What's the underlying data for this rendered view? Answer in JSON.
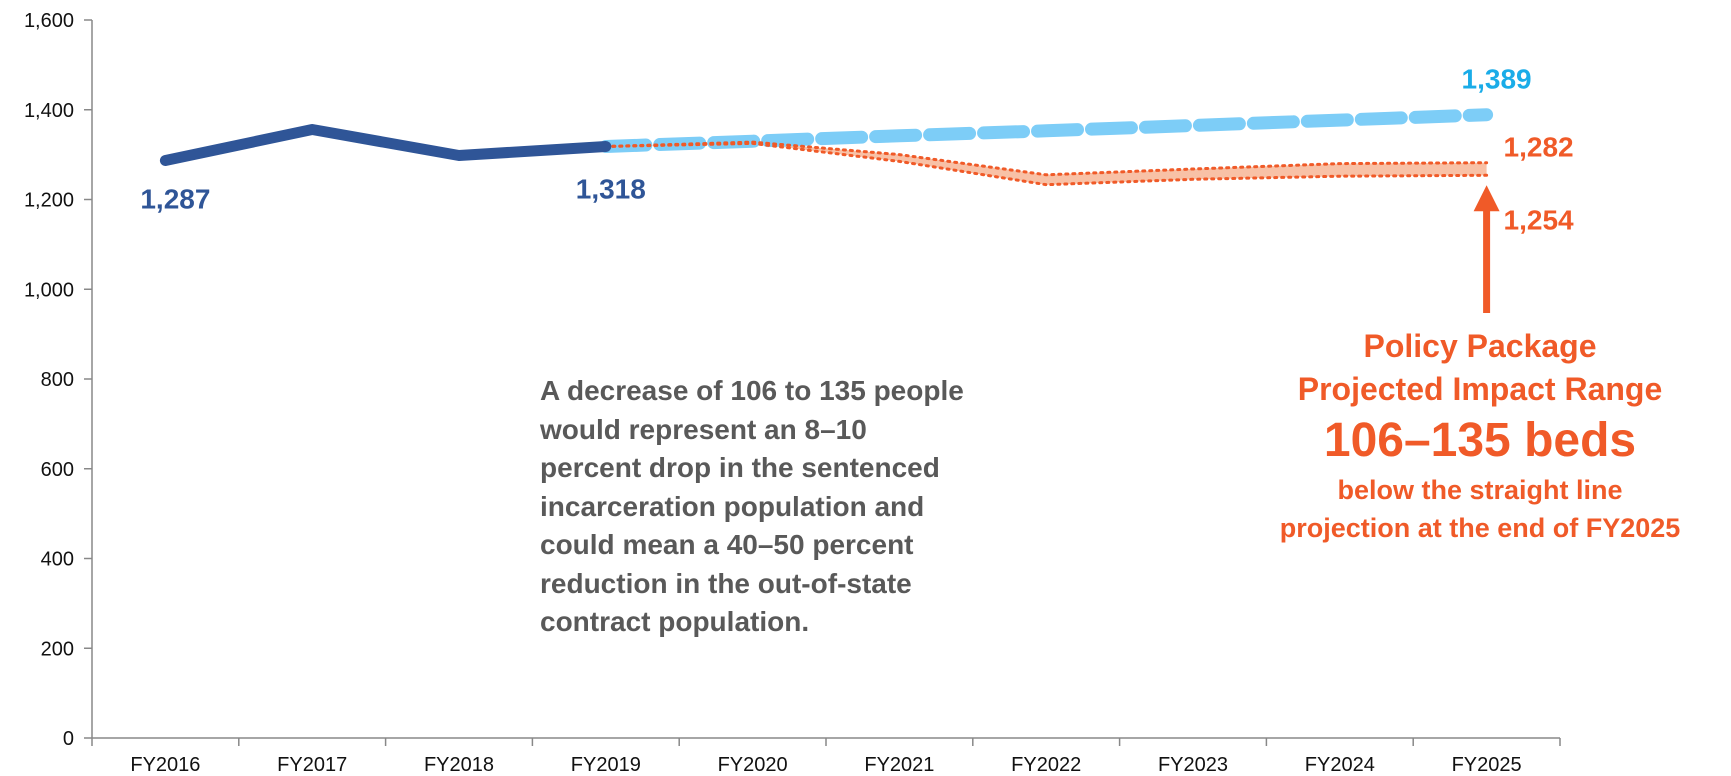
{
  "chart_data": {
    "type": "line",
    "categories": [
      "FY2016",
      "FY2017",
      "FY2018",
      "FY2019",
      "FY2020",
      "FY2021",
      "FY2022",
      "FY2023",
      "FY2024",
      "FY2025"
    ],
    "ylim": [
      0,
      1600
    ],
    "yticks": [
      0,
      200,
      400,
      600,
      800,
      1000,
      1200,
      1400,
      1600
    ],
    "ytick_labels": [
      "0",
      "200",
      "400",
      "600",
      "800",
      "1,000",
      "1,200",
      "1,400",
      "1,600"
    ],
    "grid": false,
    "colors": {
      "actual": "#2f5597",
      "straight_line": "#7dcdf7",
      "policy_range": "#f05a28",
      "policy_range_fill": "#f8c1a6",
      "straight_line_label": "#1aace8",
      "note_text": "#595959",
      "axis": "#888888"
    },
    "series": [
      {
        "key": "actual",
        "style": "solid",
        "x": [
          "FY2016",
          "FY2017",
          "FY2018",
          "FY2019"
        ],
        "values": [
          1287,
          1356,
          1298,
          1318
        ]
      },
      {
        "key": "straight_line",
        "style": "dashed",
        "x": [
          "FY2019",
          "FY2020",
          "FY2021",
          "FY2022",
          "FY2023",
          "FY2024",
          "FY2025"
        ],
        "values": [
          1318,
          1330,
          1342,
          1353,
          1365,
          1377,
          1389
        ]
      },
      {
        "key": "policy_high",
        "style": "dotted",
        "x": [
          "FY2019",
          "FY2020",
          "FY2021",
          "FY2022",
          "FY2023",
          "FY2024",
          "FY2025"
        ],
        "values": [
          1318,
          1328,
          1300,
          1255,
          1268,
          1280,
          1282
        ]
      },
      {
        "key": "policy_low",
        "style": "dotted",
        "x": [
          "FY2019",
          "FY2020",
          "FY2021",
          "FY2022",
          "FY2023",
          "FY2024",
          "FY2025"
        ],
        "values": [
          1318,
          1325,
          1285,
          1233,
          1245,
          1252,
          1254
        ]
      }
    ],
    "data_labels": [
      {
        "text": "1,287",
        "x": "FY2016",
        "value": 1287,
        "color_key": "actual"
      },
      {
        "text": "1,318",
        "x": "FY2019",
        "value": 1318,
        "color_key": "actual"
      },
      {
        "text": "1,389",
        "x": "FY2025",
        "value": 1389,
        "color_key": "straight_line_label"
      },
      {
        "text": "1,282",
        "x": "FY2025",
        "value": 1282,
        "color_key": "policy_range"
      },
      {
        "text": "1,254",
        "x": "FY2025",
        "value": 1254,
        "color_key": "policy_range"
      }
    ]
  },
  "annotations": {
    "note_lines": [
      "A decrease of 106 to 135 people",
      "would represent an 8–10",
      "percent drop in the sentenced",
      "incarceration population and",
      "could mean a 40–50 percent",
      "reduction in the out-of-state",
      "contract population."
    ],
    "policy_line1": "Policy Package",
    "policy_line2": "Projected Impact Range",
    "policy_big": "106–135 beds",
    "policy_line3": "below the straight line",
    "policy_line4": "projection at the end of FY2025"
  }
}
